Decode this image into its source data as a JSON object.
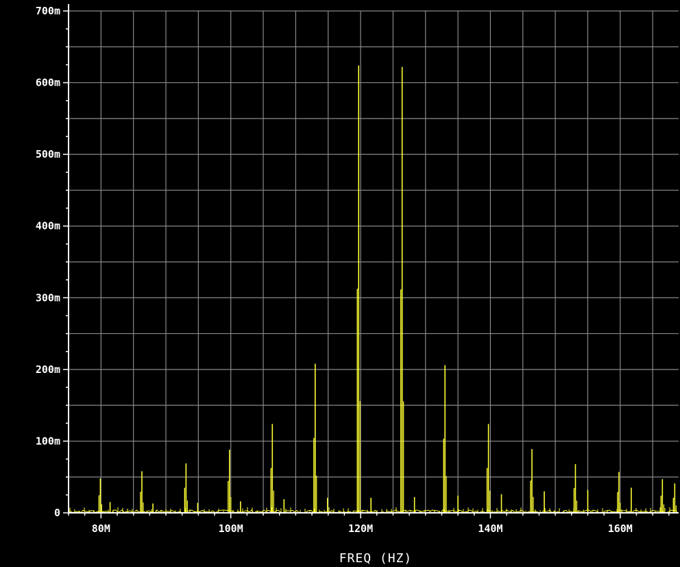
{
  "chart_data": {
    "type": "line",
    "title": "",
    "xlabel": "FREQ (HZ)",
    "ylabel": "",
    "xlim": [
      75000000,
      169000000
    ],
    "ylim": [
      0,
      0.7
    ],
    "grid": true,
    "x_ticks": [
      {
        "value": 80000000,
        "label": "80M"
      },
      {
        "value": 100000000,
        "label": "100M"
      },
      {
        "value": 120000000,
        "label": "120M"
      },
      {
        "value": 140000000,
        "label": "140M"
      },
      {
        "value": 160000000,
        "label": "160M"
      }
    ],
    "y_ticks": [
      {
        "value": 0,
        "label": "0"
      },
      {
        "value": 0.1,
        "label": "100m"
      },
      {
        "value": 0.2,
        "label": "200m"
      },
      {
        "value": 0.3,
        "label": "300m"
      },
      {
        "value": 0.4,
        "label": "400m"
      },
      {
        "value": 0.5,
        "label": "500m"
      },
      {
        "value": 0.6,
        "label": "600m"
      },
      {
        "value": 0.7,
        "label": "700m"
      }
    ],
    "noise_floor": 0.004,
    "series": [
      {
        "color": "#ffff33",
        "peaks": [
          {
            "x": 79900000,
            "y": 0.048
          },
          {
            "x": 81400000,
            "y": 0.015
          },
          {
            "x": 86300000,
            "y": 0.058
          },
          {
            "x": 88000000,
            "y": 0.013
          },
          {
            "x": 93100000,
            "y": 0.069
          },
          {
            "x": 94900000,
            "y": 0.014
          },
          {
            "x": 99800000,
            "y": 0.088
          },
          {
            "x": 101500000,
            "y": 0.016
          },
          {
            "x": 106400000,
            "y": 0.124
          },
          {
            "x": 108200000,
            "y": 0.019
          },
          {
            "x": 113000000,
            "y": 0.208
          },
          {
            "x": 114900000,
            "y": 0.021
          },
          {
            "x": 119700000,
            "y": 0.624
          },
          {
            "x": 121600000,
            "y": 0.021
          },
          {
            "x": 126400000,
            "y": 0.622
          },
          {
            "x": 128300000,
            "y": 0.022
          },
          {
            "x": 133000000,
            "y": 0.206
          },
          {
            "x": 135000000,
            "y": 0.024
          },
          {
            "x": 139700000,
            "y": 0.124
          },
          {
            "x": 141700000,
            "y": 0.026
          },
          {
            "x": 146400000,
            "y": 0.089
          },
          {
            "x": 148300000,
            "y": 0.03
          },
          {
            "x": 153100000,
            "y": 0.068
          },
          {
            "x": 155000000,
            "y": 0.032
          },
          {
            "x": 159800000,
            "y": 0.057
          },
          {
            "x": 161700000,
            "y": 0.035
          },
          {
            "x": 166500000,
            "y": 0.047
          },
          {
            "x": 168400000,
            "y": 0.041
          }
        ]
      }
    ]
  }
}
